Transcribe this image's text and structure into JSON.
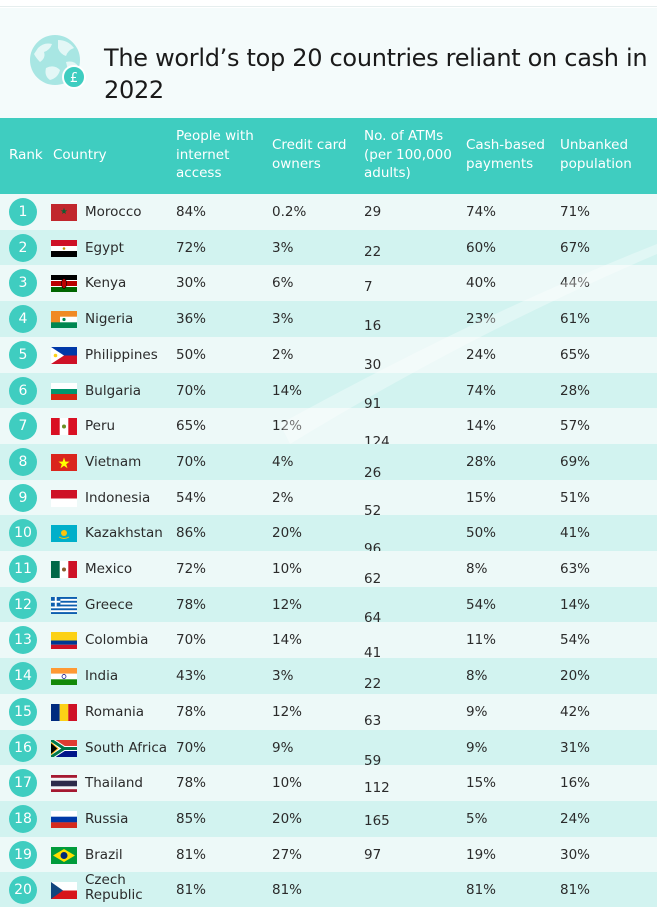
{
  "title": "The world’s top 20 countries reliant on cash in 2022",
  "icon": "globe-pound-icon",
  "colors": {
    "accent": "#3fcdc0",
    "row_light": "#edf9f8",
    "row_dark": "#d2f3f0",
    "header_bg": "#f4fbfb"
  },
  "columns": {
    "rank": "Rank",
    "country": "Country",
    "internet": "People with internet access",
    "credit": "Credit card owners",
    "atms": "No. of ATMs (per 100,000 adults)",
    "cash": "Cash-based payments",
    "unbanked": "Unbanked population"
  },
  "rows": [
    {
      "rank": "1",
      "country": "Morocco",
      "flag": "morocco-flag-icon",
      "internet": "84%",
      "credit": "0.2%",
      "atms": "29",
      "cash": "74%",
      "unbanked": "71%"
    },
    {
      "rank": "2",
      "country": "Egypt",
      "flag": "egypt-flag-icon",
      "internet": "72%",
      "credit": "3%",
      "atms": "22",
      "cash": "60%",
      "unbanked": "67%"
    },
    {
      "rank": "3",
      "country": "Kenya",
      "flag": "kenya-flag-icon",
      "internet": "30%",
      "credit": "6%",
      "atms": "7",
      "cash": "40%",
      "unbanked": "44%"
    },
    {
      "rank": "4",
      "country": "Nigeria",
      "flag": "nigeria-flag-icon",
      "internet": "36%",
      "credit": "3%",
      "atms": "16",
      "cash": "23%",
      "unbanked": "61%"
    },
    {
      "rank": "5",
      "country": "Philippines",
      "flag": "philippines-flag-icon",
      "internet": "50%",
      "credit": "2%",
      "atms": "30",
      "cash": "24%",
      "unbanked": "65%"
    },
    {
      "rank": "6",
      "country": "Bulgaria",
      "flag": "bulgaria-flag-icon",
      "internet": "70%",
      "credit": "14%",
      "atms": "91",
      "cash": "74%",
      "unbanked": "28%"
    },
    {
      "rank": "7",
      "country": "Peru",
      "flag": "peru-flag-icon",
      "internet": "65%",
      "credit": "12%",
      "atms": "124",
      "cash": "14%",
      "unbanked": "57%"
    },
    {
      "rank": "8",
      "country": "Vietnam",
      "flag": "vietnam-flag-icon",
      "internet": "70%",
      "credit": "4%",
      "atms": "26",
      "cash": "28%",
      "unbanked": "69%"
    },
    {
      "rank": "9",
      "country": "Indonesia",
      "flag": "indonesia-flag-icon",
      "internet": "54%",
      "credit": "2%",
      "atms": "52",
      "cash": "15%",
      "unbanked": "51%"
    },
    {
      "rank": "10",
      "country": "Kazakhstan",
      "flag": "kazakhstan-flag-icon",
      "internet": "86%",
      "credit": "20%",
      "atms": "96",
      "cash": "50%",
      "unbanked": "41%"
    },
    {
      "rank": "11",
      "country": "Mexico",
      "flag": "mexico-flag-icon",
      "internet": "72%",
      "credit": "10%",
      "atms": "62",
      "cash": "8%",
      "unbanked": "63%"
    },
    {
      "rank": "12",
      "country": "Greece",
      "flag": "greece-flag-icon",
      "internet": "78%",
      "credit": "12%",
      "atms": "64",
      "cash": "54%",
      "unbanked": "14%"
    },
    {
      "rank": "13",
      "country": "Colombia",
      "flag": "colombia-flag-icon",
      "internet": "70%",
      "credit": "14%",
      "atms": "41",
      "cash": "11%",
      "unbanked": "54%"
    },
    {
      "rank": "14",
      "country": "India",
      "flag": "india-flag-icon",
      "internet": "43%",
      "credit": "3%",
      "atms": "22",
      "cash": "8%",
      "unbanked": "20%"
    },
    {
      "rank": "15",
      "country": "Romania",
      "flag": "romania-flag-icon",
      "internet": "78%",
      "credit": "12%",
      "atms": "63",
      "cash": "9%",
      "unbanked": "42%"
    },
    {
      "rank": "16",
      "country": "South Africa",
      "flag": "south-africa-flag-icon",
      "internet": "70%",
      "credit": "9%",
      "atms": "59",
      "cash": "9%",
      "unbanked": "31%"
    },
    {
      "rank": "17",
      "country": "Thailand",
      "flag": "thailand-flag-icon",
      "internet": "78%",
      "credit": "10%",
      "atms": "112",
      "cash": "15%",
      "unbanked": "16%"
    },
    {
      "rank": "18",
      "country": "Russia",
      "flag": "russia-flag-icon",
      "internet": "85%",
      "credit": "20%",
      "atms": "165",
      "cash": "5%",
      "unbanked": "24%"
    },
    {
      "rank": "19",
      "country": "Brazil",
      "flag": "brazil-flag-icon",
      "internet": "81%",
      "credit": "27%",
      "atms": "97",
      "cash": "19%",
      "unbanked": "30%"
    },
    {
      "rank": "20",
      "country": "Czech Republic",
      "flag": "czech-republic-flag-icon",
      "internet": "81%",
      "credit": "81%",
      "atms": "",
      "cash": "81%",
      "unbanked": "81%"
    }
  ]
}
